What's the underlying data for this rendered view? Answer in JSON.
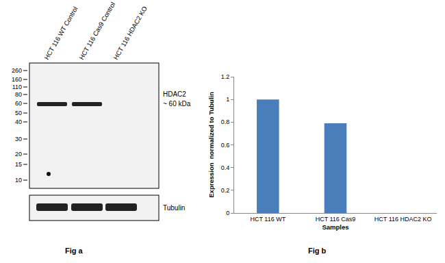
{
  "chart_data": {
    "type": "bar",
    "categories": [
      "HCT 116 WT",
      "HCT 116 Cas9",
      "HCT 116 HDAC2 KO"
    ],
    "values": [
      1,
      0.79,
      0
    ],
    "color": "#4a7ebb",
    "x_label": "Samples",
    "y_label": "Expression  normalized to Tubulin",
    "ylim": [
      0,
      1.2
    ],
    "yticks": [
      0,
      0.2,
      0.4,
      0.6,
      0.8,
      1,
      1.2
    ],
    "grid": false
  },
  "figure_a": {
    "label": "Fig a",
    "lanes": [
      "HCT 116 WT Control",
      "HCT 116 Cas9 Control",
      "HCT 116 HDAC2 KO"
    ],
    "marker_sizes": [
      260,
      160,
      110,
      80,
      60,
      50,
      40,
      30,
      20,
      15,
      10
    ],
    "band_label": "HDAC2",
    "band_size": "~ 60 kDa",
    "band_present": [
      true,
      true,
      false
    ],
    "loading_control": "Tubulin"
  },
  "figure_b": {
    "label": "Fig b"
  }
}
